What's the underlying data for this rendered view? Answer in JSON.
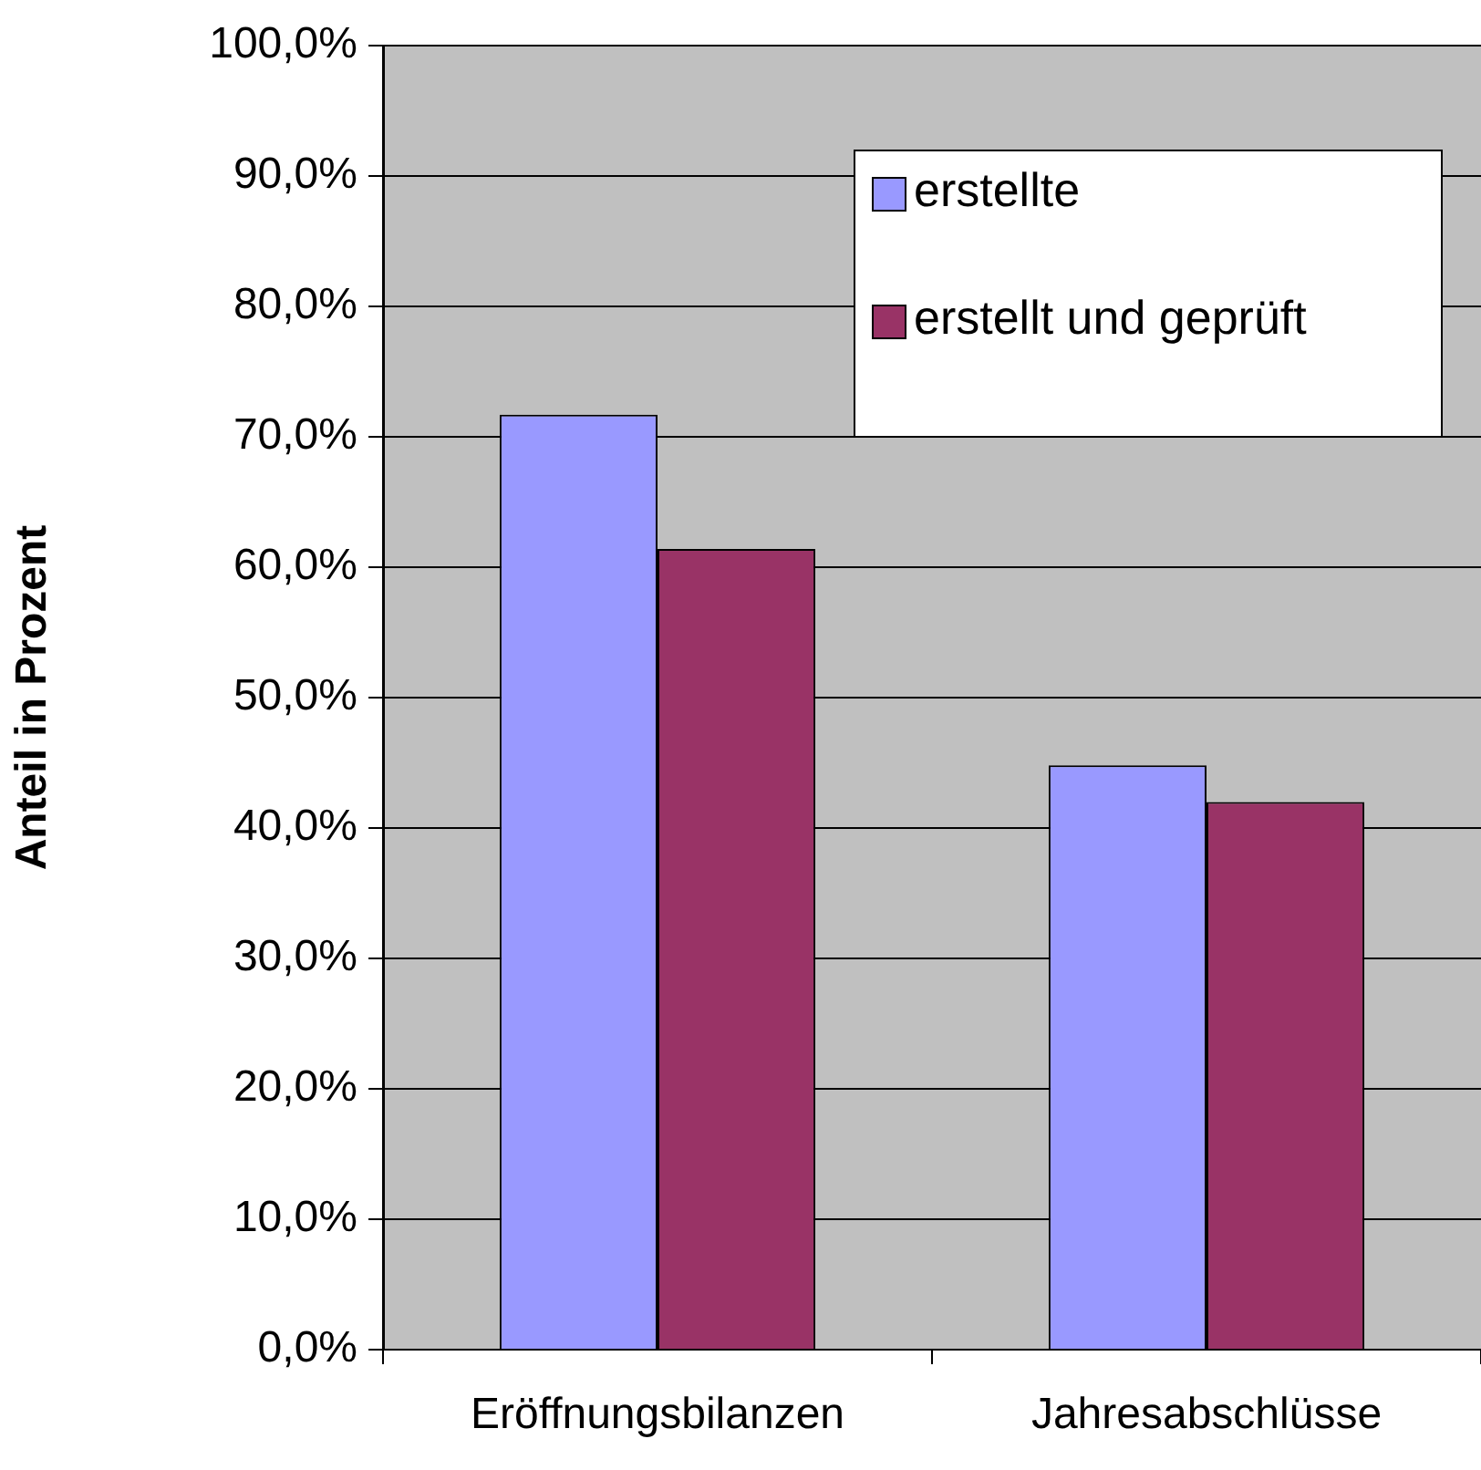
{
  "chart_data": {
    "type": "bar",
    "ylabel": "Anteil in Prozent",
    "categories": [
      "Eröffnungsbilanzen",
      "Jahresabschlüsse"
    ],
    "series": [
      {
        "name": "erstellte",
        "color": "#9999ff",
        "values": [
          71.7,
          44.8
        ]
      },
      {
        "name": "erstellt und geprüft",
        "color": "#993366",
        "values": [
          61.4,
          42.0
        ]
      }
    ],
    "ylim": [
      0,
      100
    ],
    "yticks": [
      {
        "value": 0,
        "label": "0,0%"
      },
      {
        "value": 10,
        "label": "10,0%"
      },
      {
        "value": 20,
        "label": "20,0%"
      },
      {
        "value": 30,
        "label": "30,0%"
      },
      {
        "value": 40,
        "label": "40,0%"
      },
      {
        "value": 50,
        "label": "50,0%"
      },
      {
        "value": 60,
        "label": "60,0%"
      },
      {
        "value": 70,
        "label": "70,0%"
      },
      {
        "value": 80,
        "label": "80,0%"
      },
      {
        "value": 90,
        "label": "90,0%"
      },
      {
        "value": 100,
        "label": "100,0%"
      }
    ],
    "grid": "y",
    "legend": "top right"
  }
}
